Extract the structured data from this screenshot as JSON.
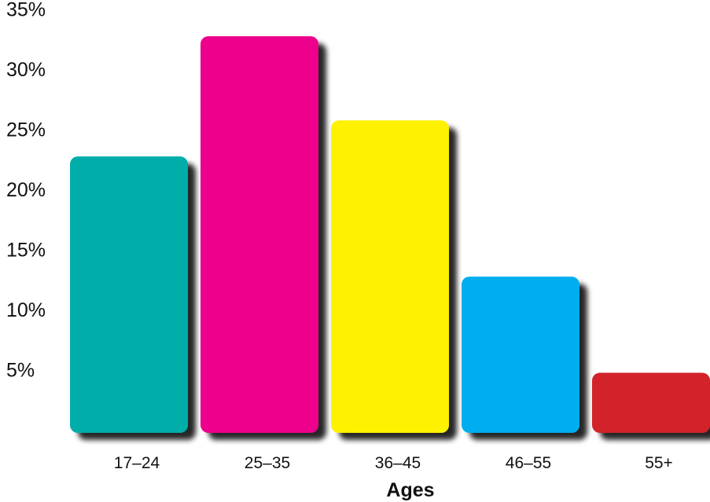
{
  "chart_data": {
    "type": "bar",
    "title": "",
    "xlabel": "Ages",
    "ylabel": "",
    "categories": [
      "17–24",
      "25–35",
      "36–45",
      "46–55",
      "55+"
    ],
    "values": [
      23,
      33,
      26,
      13,
      5
    ],
    "colors": [
      "#00ada9",
      "#ec008c",
      "#fff200",
      "#00aeef",
      "#d2232a"
    ],
    "ylim": [
      0,
      35
    ],
    "yticks": [
      5,
      10,
      15,
      20,
      25,
      30,
      35
    ],
    "ytick_labels": [
      "5%",
      "10%",
      "15%",
      "20%",
      "25%",
      "30%",
      "35%"
    ],
    "grid": false,
    "legend": "none",
    "bar_style": "rounded with drop shadow"
  }
}
